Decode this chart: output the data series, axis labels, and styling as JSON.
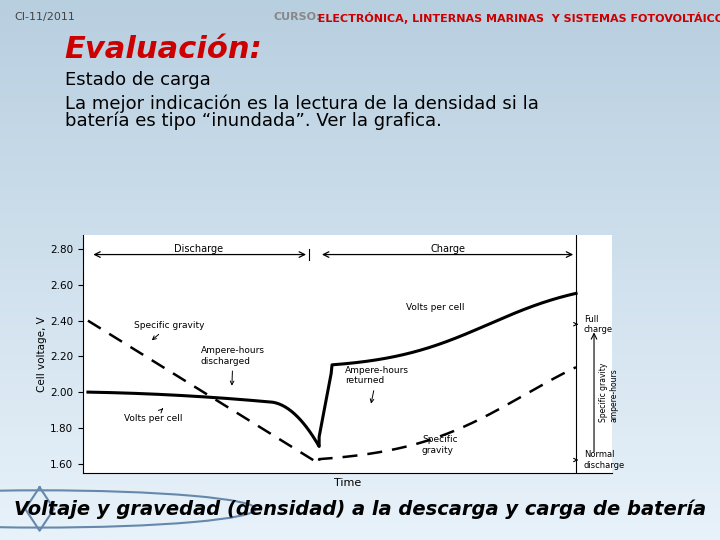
{
  "bg_color_top": "#b8cfe0",
  "bg_color_bottom": "#ddeaf4",
  "title_text": "Evaluación:",
  "title_color": "#cc0000",
  "title_fontsize": 22,
  "subtitle_text": "Estado de carga",
  "subtitle_fontsize": 13,
  "subtitle_color": "#000000",
  "body_line1": "La mejor indicación es la lectura de la densidad si la",
  "body_line2": "batería es tipo “inundada”. Ver la grafica.",
  "body_fontsize": 13,
  "body_color": "#000000",
  "footer_text": "Voltaje y gravedad (densidad) a la descarga y carga de batería",
  "footer_fontsize": 14,
  "footer_color": "#000000",
  "footer_bg": "#aec8dc",
  "header_left": "CI-11/2011",
  "header_right_label": "CURSO:",
  "header_right_content": "  ELECTRÓNICA, LINTERNAS MARINAS  Y SISTEMAS FOTOVOLTÁICOS",
  "header_fontsize": 8,
  "header_color_left": "#444444",
  "header_color_curso": "#888888",
  "header_color_right": "#cc0000",
  "chart_bg": "#ffffff",
  "yticks": [
    1.6,
    1.8,
    2.0,
    2.2,
    2.4,
    2.6,
    2.8
  ],
  "ylabel": "Cell voltage, V",
  "xlabel": "Time"
}
